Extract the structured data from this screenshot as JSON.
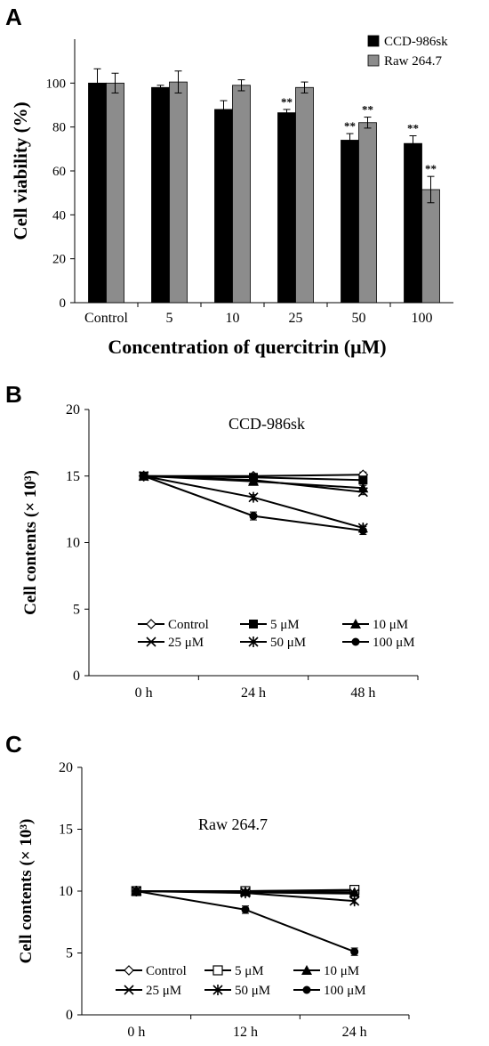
{
  "chart_data": [
    {
      "panel": "A",
      "type": "bar",
      "categories": [
        "Control",
        "5",
        "10",
        "25",
        "50",
        "100"
      ],
      "series": [
        {
          "name": "CCD-986sk",
          "color": "#000000",
          "values": [
            100,
            98,
            88,
            86.5,
            74,
            72.5
          ],
          "errors": [
            6.5,
            1,
            4,
            1.5,
            3,
            3.5
          ]
        },
        {
          "name": "Raw 264.7",
          "color": "#8c8c8c",
          "values": [
            100,
            100.5,
            99,
            98,
            82,
            51.5
          ],
          "errors": [
            4.5,
            5,
            2.5,
            2.5,
            2.5,
            6
          ]
        }
      ],
      "significance": [
        {
          "category": "25",
          "series": 0,
          "label": "**"
        },
        {
          "category": "50",
          "series": 0,
          "label": "**"
        },
        {
          "category": "50",
          "series": 1,
          "label": "**"
        },
        {
          "category": "100",
          "series": 0,
          "label": "**"
        },
        {
          "category": "100",
          "series": 1,
          "label": "**"
        }
      ],
      "xlabel": "Concentration of quercitrin (μM)",
      "ylabel": "Cell viability (%)",
      "ylim": [
        0,
        120
      ],
      "yticks": [
        0,
        20,
        40,
        60,
        80,
        100
      ],
      "legend_position": "top-right"
    },
    {
      "panel": "B",
      "type": "line",
      "title": "CCD-986sk",
      "categories": [
        "0 h",
        "24 h",
        "48 h"
      ],
      "series": [
        {
          "name": "Control",
          "marker": "diamond-open",
          "values": [
            15,
            15,
            15.1
          ],
          "errors": [
            0,
            0.15,
            0.2
          ]
        },
        {
          "name": "5 μM",
          "marker": "square",
          "values": [
            15,
            14.9,
            14.7
          ],
          "errors": [
            0,
            0.1,
            0.2
          ]
        },
        {
          "name": "10 μM",
          "marker": "triangle",
          "values": [
            15,
            14.6,
            14.1
          ],
          "errors": [
            0,
            0.15,
            0.2
          ]
        },
        {
          "name": "25 μM",
          "marker": "x",
          "values": [
            15,
            14.7,
            13.8
          ],
          "errors": [
            0,
            0.1,
            0.2
          ]
        },
        {
          "name": "50 μM",
          "marker": "star",
          "values": [
            15,
            13.4,
            11.1
          ],
          "errors": [
            0,
            0.2,
            0.2
          ]
        },
        {
          "name": "100 μM",
          "marker": "circle",
          "values": [
            15,
            12,
            10.9
          ],
          "errors": [
            0,
            0.3,
            0.3
          ]
        }
      ],
      "ylabel": "Cell contents (× 10³)",
      "ylim": [
        0,
        20
      ],
      "yticks": [
        0,
        5,
        10,
        15,
        20
      ],
      "legend_position": "bottom"
    },
    {
      "panel": "C",
      "type": "line",
      "title": "Raw 264.7",
      "categories": [
        "0 h",
        "12 h",
        "24 h"
      ],
      "series": [
        {
          "name": "Control",
          "marker": "diamond-open",
          "values": [
            10,
            10,
            10.05
          ],
          "errors": [
            0,
            0.1,
            0.1
          ]
        },
        {
          "name": "5 μM",
          "marker": "square-open",
          "values": [
            10,
            10,
            10.1
          ],
          "errors": [
            0,
            0.1,
            0.1
          ]
        },
        {
          "name": "10 μM",
          "marker": "triangle",
          "values": [
            10,
            9.95,
            9.9
          ],
          "errors": [
            0,
            0.1,
            0.1
          ]
        },
        {
          "name": "25 μM",
          "marker": "x",
          "values": [
            10,
            9.9,
            9.8
          ],
          "errors": [
            0,
            0.1,
            0.1
          ]
        },
        {
          "name": "50 μM",
          "marker": "star",
          "values": [
            10,
            9.85,
            9.2
          ],
          "errors": [
            0,
            0.1,
            0.2
          ]
        },
        {
          "name": "100 μM",
          "marker": "circle",
          "values": [
            10,
            8.5,
            5.1
          ],
          "errors": [
            0,
            0.3,
            0.3
          ]
        }
      ],
      "ylabel": "Cell contents (× 10³)",
      "ylim": [
        0,
        20
      ],
      "yticks": [
        0,
        5,
        10,
        15,
        20
      ],
      "legend_position": "bottom"
    }
  ]
}
